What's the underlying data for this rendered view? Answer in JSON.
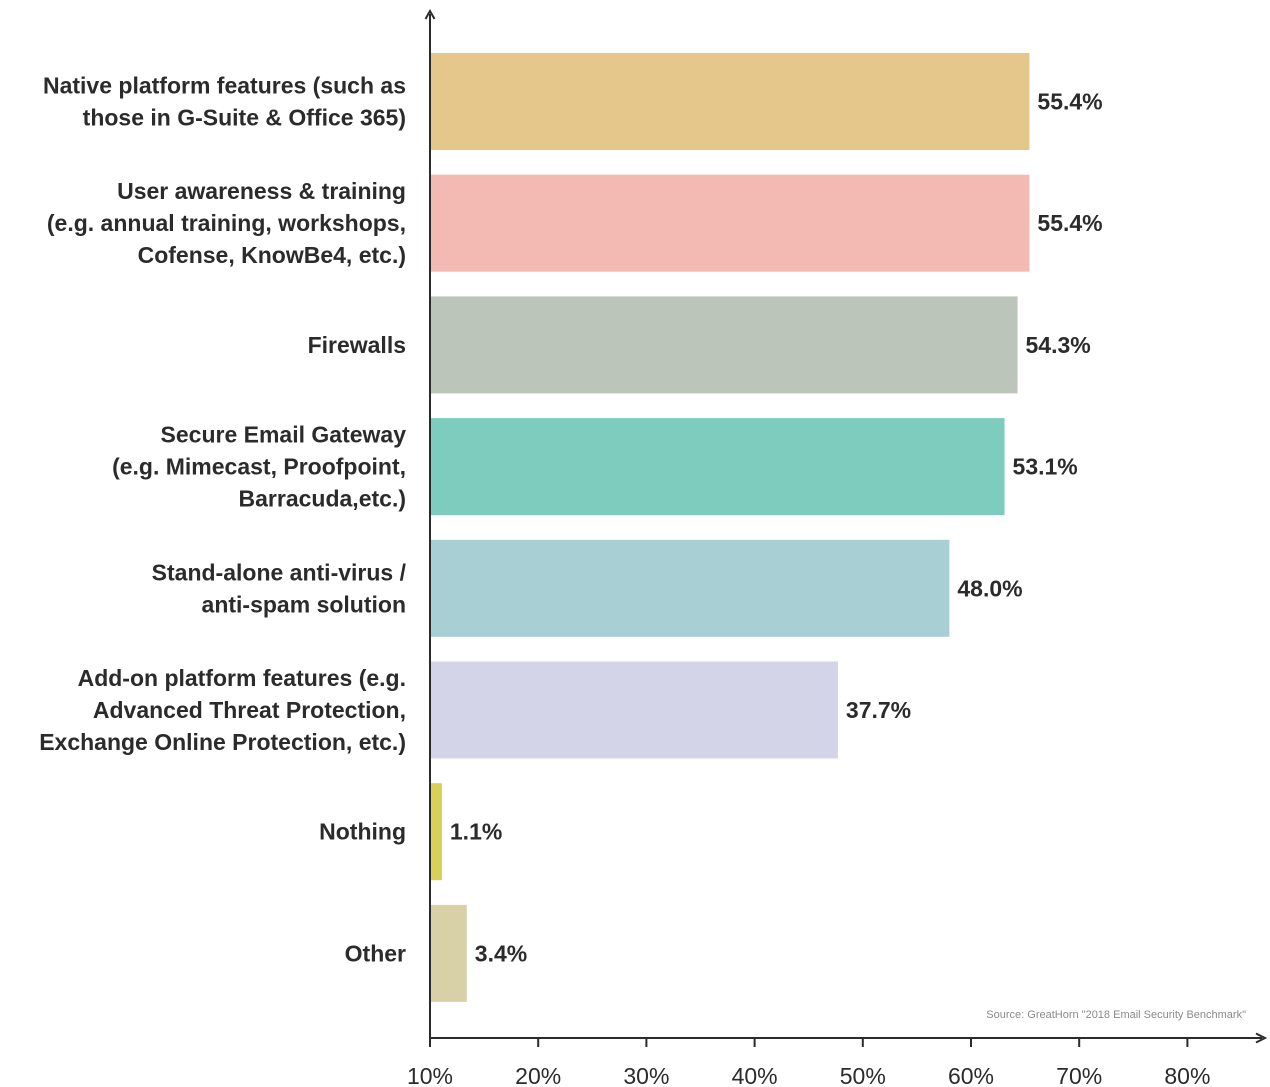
{
  "chart_data": {
    "type": "bar",
    "orientation": "horizontal",
    "categories": [
      [
        "Native platform features (such as",
        "those in G-Suite & Office 365)"
      ],
      [
        "User awareness & training",
        "(e.g. annual training, workshops,",
        "Cofense, KnowBe4, etc.)"
      ],
      [
        "Firewalls"
      ],
      [
        "Secure Email Gateway",
        "(e.g. Mimecast, Proofpoint,",
        "Barracuda,etc.)"
      ],
      [
        "Stand-alone anti-virus /",
        "anti-spam solution"
      ],
      [
        "Add-on platform features (e.g.",
        "Advanced Threat Protection,",
        "Exchange Online Protection, etc.)"
      ],
      [
        "Nothing"
      ],
      [
        "Other"
      ]
    ],
    "values": [
      55.4,
      55.4,
      54.3,
      53.1,
      48.0,
      37.7,
      1.1,
      3.4
    ],
    "value_labels": [
      "55.4%",
      "55.4%",
      "54.3%",
      "53.1%",
      "48.0%",
      "37.7%",
      "1.1%",
      "3.4%"
    ],
    "colors": [
      "#e5c68b",
      "#f2bab3",
      "#bcc5b9",
      "#7dccbd",
      "#a8cfd3",
      "#d3d4e8",
      "#d9d057",
      "#d8d0a6"
    ],
    "x_ticks": [
      "10%",
      "20%",
      "30%",
      "40%",
      "50%",
      "60%",
      "70%",
      "80%"
    ],
    "x_tick_values": [
      10,
      20,
      30,
      40,
      50,
      60,
      70,
      80
    ],
    "xlim": [
      10,
      80
    ],
    "grid": false,
    "source": "Source: GreatHorn \"2018 Email Security Benchmark\""
  }
}
